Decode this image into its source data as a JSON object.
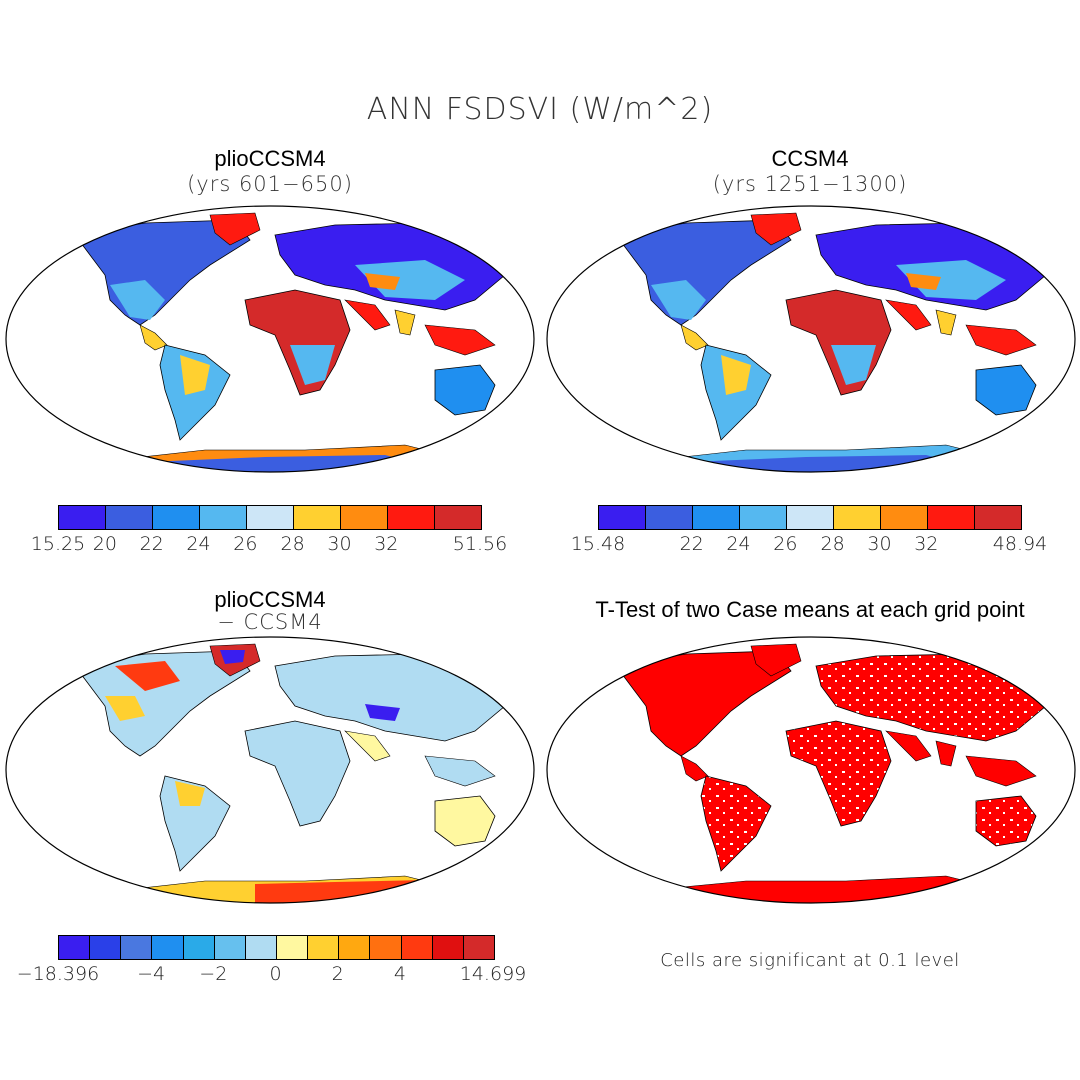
{
  "title": "ANN FSDSVI (W/m^2)",
  "panels": {
    "p1": {
      "title": "plioCCSM4",
      "subtitle": "(yrs 601−650)"
    },
    "p2": {
      "title": "CCSM4",
      "subtitle": "(yrs 1251−1300)"
    },
    "p3": {
      "title": "plioCCSM4",
      "subtitle": "− CCSM4"
    },
    "p4": {
      "title": "T-Test of two Case means at each grid point",
      "note": "Cells are significant at 0.1 level"
    }
  },
  "colorbars": {
    "cb1": {
      "colors": [
        "#3a1ef0",
        "#3b5ee0",
        "#1f8ff0",
        "#55b8f0",
        "#cde6f7",
        "#ffd030",
        "#ff8c10",
        "#ff1a10",
        "#d42a2a"
      ],
      "ticks": [
        "15.25",
        "20",
        "22",
        "24",
        "26",
        "28",
        "30",
        "32",
        "51.56"
      ]
    },
    "cb2": {
      "colors": [
        "#3a1ef0",
        "#3b5ee0",
        "#1f8ff0",
        "#55b8f0",
        "#cde6f7",
        "#ffd030",
        "#ff8c10",
        "#ff1a10",
        "#d42a2a"
      ],
      "ticks": [
        "15.48",
        "22",
        "24",
        "26",
        "28",
        "30",
        "32",
        "48.94"
      ]
    },
    "cb3": {
      "colors": [
        "#3a1ef0",
        "#2a40e8",
        "#4a78e0",
        "#1f8ff0",
        "#2aaae8",
        "#66c0ee",
        "#b0dcf2",
        "#fff8a0",
        "#ffd030",
        "#ffa810",
        "#ff7010",
        "#ff3a10",
        "#e01010",
        "#d42a2a"
      ],
      "ticks": [
        "−18.396",
        "−4",
        "−2",
        "0",
        "2",
        "4",
        "14.699"
      ]
    }
  },
  "legend_icons": {
    "map_icon": "world-map-icon"
  }
}
